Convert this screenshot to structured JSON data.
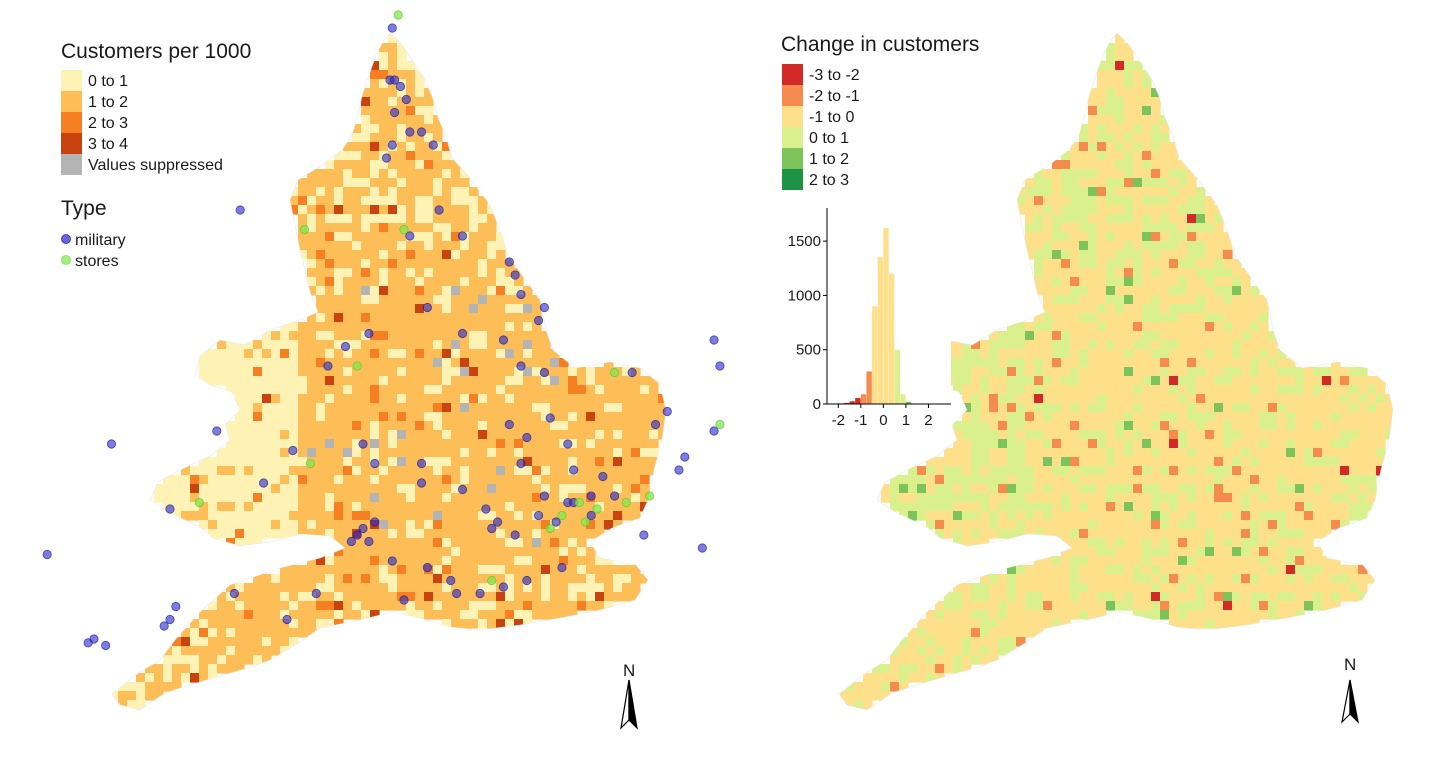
{
  "left_map": {
    "legend": {
      "title": "Customers per 1000",
      "items": [
        {
          "label": "0 to 1",
          "color": "#FEF3B5"
        },
        {
          "label": "1 to 2",
          "color": "#FDBE57"
        },
        {
          "label": "2 to 3",
          "color": "#F57F22"
        },
        {
          "label": "3 to 4",
          "color": "#C8430F"
        },
        {
          "label": "Values suppressed",
          "color": "#B4B4B4"
        }
      ]
    },
    "type_legend": {
      "title": "Type",
      "items": [
        {
          "label": "military",
          "color": "#2626CC"
        },
        {
          "label": "stores",
          "color": "#7FE84C"
        }
      ]
    },
    "north_arrow": "N"
  },
  "right_map": {
    "legend": {
      "title": "Change in customers",
      "items": [
        {
          "label": "-3 to -2",
          "color": "#D42A27"
        },
        {
          "label": "-2 to -1",
          "color": "#F58B4C"
        },
        {
          "label": "-1 to 0",
          "color": "#FEE08B"
        },
        {
          "label": "0 to 1",
          "color": "#DAF08C"
        },
        {
          "label": "1 to 2",
          "color": "#7CC45A"
        },
        {
          "label": "2 to 3",
          "color": "#1E9346"
        }
      ]
    },
    "north_arrow": "N"
  },
  "chart_data": {
    "type": "bar",
    "x": [
      -2.25,
      -2.0,
      -1.75,
      -1.5,
      -1.25,
      -1.0,
      -0.75,
      -0.5,
      -0.25,
      0.0,
      0.25,
      0.5,
      0.75,
      1.0,
      1.25
    ],
    "values": [
      2,
      5,
      10,
      25,
      55,
      90,
      300,
      900,
      1350,
      1620,
      1200,
      500,
      90,
      20,
      5
    ],
    "xticks": [
      "-2",
      "-1",
      "0",
      "1",
      "2"
    ],
    "yticks": [
      "0",
      "500",
      "1000",
      "1500"
    ],
    "xlim": [
      -2.5,
      3
    ],
    "ylim": [
      0,
      1750
    ]
  },
  "points": {
    "military": [
      [
        -1.55,
        55.55
      ],
      [
        -1.45,
        55.55
      ],
      [
        -1.6,
        55.1
      ],
      [
        -1.62,
        54.7
      ],
      [
        -1.58,
        54.7
      ],
      [
        -1.53,
        54.65
      ],
      [
        -1.48,
        54.55
      ],
      [
        -1.58,
        54.45
      ],
      [
        -1.45,
        54.3
      ],
      [
        -1.35,
        54.3
      ],
      [
        -1.6,
        54.2
      ],
      [
        -1.25,
        54.2
      ],
      [
        -1.65,
        54.1
      ],
      [
        -2.9,
        53.7
      ],
      [
        -1.2,
        53.7
      ],
      [
        -1.45,
        53.5
      ],
      [
        -1.0,
        53.5
      ],
      [
        -0.6,
        53.3
      ],
      [
        -0.55,
        53.2
      ],
      [
        -0.5,
        53.05
      ],
      [
        -0.3,
        52.95
      ],
      [
        -0.35,
        52.85
      ],
      [
        -1.3,
        52.95
      ],
      [
        -1.8,
        52.75
      ],
      [
        -2.0,
        52.65
      ],
      [
        -2.15,
        52.5
      ],
      [
        -1.0,
        52.75
      ],
      [
        -0.65,
        52.7
      ],
      [
        -0.5,
        52.5
      ],
      [
        -0.3,
        52.45
      ],
      [
        0.45,
        52.45
      ],
      [
        1.15,
        52.7
      ],
      [
        1.2,
        52.5
      ],
      [
        0.75,
        52.15
      ],
      [
        0.65,
        52.05
      ],
      [
        1.15,
        52.0
      ],
      [
        0.9,
        51.8
      ],
      [
        0.85,
        51.7
      ],
      [
        -0.25,
        52.1
      ],
      [
        -0.6,
        52.05
      ],
      [
        -0.1,
        51.9
      ],
      [
        -0.5,
        51.75
      ],
      [
        -0.05,
        51.7
      ],
      [
        0.2,
        51.65
      ],
      [
        0.3,
        51.5
      ],
      [
        0.1,
        51.5
      ],
      [
        -3.1,
        52.0
      ],
      [
        -4.0,
        51.9
      ],
      [
        -2.45,
        51.85
      ],
      [
        -1.75,
        51.75
      ],
      [
        -1.35,
        51.6
      ],
      [
        -1.0,
        51.55
      ],
      [
        -0.8,
        51.4
      ],
      [
        -0.7,
        51.3
      ],
      [
        -0.75,
        51.25
      ],
      [
        -0.55,
        51.2
      ],
      [
        -0.35,
        51.35
      ],
      [
        -0.2,
        51.3
      ],
      [
        -0.1,
        51.45
      ],
      [
        -0.3,
        51.5
      ],
      [
        -0.05,
        51.45
      ],
      [
        0.1,
        51.35
      ],
      [
        0.55,
        51.2
      ],
      [
        1.05,
        51.1
      ],
      [
        -1.8,
        51.15
      ],
      [
        -1.75,
        51.3
      ],
      [
        -1.85,
        51.25
      ],
      [
        -1.9,
        51.2
      ],
      [
        -1.95,
        51.15
      ],
      [
        -1.6,
        51.0
      ],
      [
        -2.25,
        50.75
      ],
      [
        -1.3,
        50.95
      ],
      [
        -1.1,
        50.85
      ],
      [
        -1.05,
        50.75
      ],
      [
        -0.85,
        50.75
      ],
      [
        -0.65,
        50.8
      ],
      [
        -0.45,
        50.85
      ],
      [
        -0.15,
        50.95
      ],
      [
        -1.5,
        50.7
      ],
      [
        -2.5,
        50.55
      ],
      [
        -2.95,
        50.75
      ],
      [
        -3.45,
        50.65
      ],
      [
        -3.5,
        50.55
      ],
      [
        -4.15,
        50.4
      ],
      [
        -4.2,
        50.37
      ],
      [
        -4.05,
        50.35
      ],
      [
        -5.15,
        50.15
      ],
      [
        -5.25,
        50.05
      ],
      [
        -3.55,
        50.5
      ],
      [
        -4.55,
        51.05
      ],
      [
        -2.7,
        51.6
      ],
      [
        -1.85,
        51.9
      ],
      [
        -3.5,
        51.4
      ],
      [
        -1.35,
        51.75
      ],
      [
        -0.45,
        51.95
      ]
    ],
    "stores": [
      [
        -1.55,
        55.2
      ],
      [
        -2.35,
        53.55
      ],
      [
        -1.5,
        53.55
      ],
      [
        -1.9,
        52.5
      ],
      [
        0.3,
        52.45
      ],
      [
        1.3,
        52.5
      ],
      [
        1.2,
        52.05
      ],
      [
        -2.3,
        51.75
      ],
      [
        -3.25,
        51.45
      ],
      [
        0.0,
        51.45
      ],
      [
        0.15,
        51.4
      ],
      [
        0.4,
        51.45
      ],
      [
        0.6,
        51.5
      ],
      [
        0.05,
        51.3
      ],
      [
        -0.25,
        51.25
      ],
      [
        -0.75,
        50.85
      ],
      [
        -0.15,
        51.35
      ]
    ]
  }
}
